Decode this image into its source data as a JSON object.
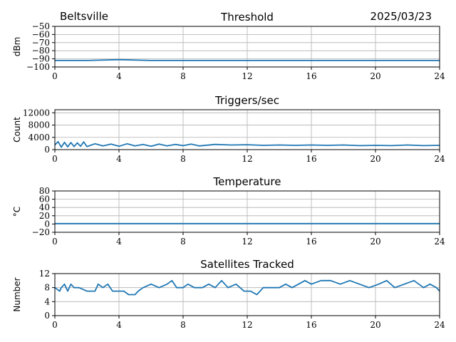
{
  "header": {
    "location": "Beltsville",
    "date": "2025/03/23"
  },
  "colors": {
    "series": "#1f77b4",
    "grid": "#b0b0b0",
    "axis": "#000000"
  },
  "chart_data": [
    {
      "type": "line",
      "title": "Threshold",
      "ylabel": "dBm",
      "xlim": [
        0,
        24
      ],
      "ylim": [
        -100,
        -50
      ],
      "xticks": [
        0,
        4,
        8,
        12,
        16,
        20,
        24
      ],
      "yticks": [
        -100,
        -90,
        -80,
        -70,
        -60,
        -50
      ],
      "grid": true,
      "series": [
        {
          "x": [
            0,
            2,
            4,
            6,
            8,
            10,
            12,
            14,
            16,
            18,
            20,
            22,
            24
          ],
          "values": [
            -92,
            -92,
            -91,
            -92,
            -92,
            -92,
            -92,
            -92,
            -92,
            -92,
            -92,
            -92,
            -92
          ]
        }
      ]
    },
    {
      "type": "line",
      "title": "Triggers/sec",
      "ylabel": "Count",
      "xlim": [
        0,
        24
      ],
      "ylim": [
        0,
        13000
      ],
      "xticks": [
        0,
        4,
        8,
        12,
        16,
        20,
        24
      ],
      "yticks": [
        0,
        4000,
        8000,
        12000
      ],
      "grid": true,
      "series": [
        {
          "x": [
            0,
            0.2,
            0.4,
            0.6,
            0.8,
            1.0,
            1.2,
            1.4,
            1.6,
            1.8,
            2.0,
            2.5,
            3.0,
            3.5,
            4.0,
            4.5,
            5.0,
            5.5,
            6.0,
            6.5,
            7.0,
            7.5,
            8.0,
            8.5,
            9.0,
            10.0,
            11.0,
            12.0,
            13.0,
            14.0,
            15.0,
            16.0,
            17.0,
            18.0,
            19.0,
            20.0,
            21.0,
            22.0,
            23.0,
            24.0
          ],
          "values": [
            1500,
            2600,
            800,
            2400,
            900,
            2300,
            1000,
            2200,
            1100,
            2500,
            1000,
            1900,
            1200,
            1800,
            1100,
            1900,
            1200,
            1700,
            1100,
            1800,
            1200,
            1700,
            1300,
            1800,
            1200,
            1700,
            1500,
            1600,
            1400,
            1500,
            1400,
            1500,
            1400,
            1500,
            1300,
            1400,
            1300,
            1500,
            1300,
            1400
          ]
        }
      ]
    },
    {
      "type": "line",
      "title": "Temperature",
      "ylabel": "°C",
      "xlim": [
        0,
        24
      ],
      "ylim": [
        -20,
        80
      ],
      "xticks": [
        0,
        4,
        8,
        12,
        16,
        20,
        24
      ],
      "yticks": [
        -20,
        0,
        20,
        40,
        60,
        80
      ],
      "grid": true,
      "series": [
        {
          "x": [
            0,
            4,
            8,
            12,
            16,
            20,
            24
          ],
          "values": [
            1,
            1,
            1,
            1,
            1,
            1,
            1
          ]
        }
      ]
    },
    {
      "type": "line",
      "title": "Satellites Tracked",
      "ylabel": "Number",
      "xlim": [
        0,
        24
      ],
      "ylim": [
        0,
        12
      ],
      "xticks": [
        0,
        4,
        8,
        12,
        16,
        20,
        24
      ],
      "yticks": [
        0,
        4,
        8,
        12
      ],
      "grid": true,
      "series": [
        {
          "x": [
            0,
            0.3,
            0.4,
            0.6,
            0.8,
            1.0,
            1.2,
            1.5,
            2.0,
            2.5,
            2.7,
            3.0,
            3.3,
            3.6,
            4.0,
            4.3,
            4.6,
            5.0,
            5.2,
            5.5,
            6.0,
            6.5,
            7.0,
            7.3,
            7.6,
            8.0,
            8.3,
            8.7,
            9.2,
            9.6,
            10.0,
            10.4,
            10.8,
            11.3,
            11.8,
            12.2,
            12.6,
            13.0,
            13.5,
            14.0,
            14.4,
            14.8,
            15.2,
            15.6,
            16.0,
            16.6,
            17.2,
            17.8,
            18.4,
            19.0,
            19.6,
            20.2,
            20.7,
            21.2,
            21.8,
            22.4,
            23.0,
            23.4,
            23.8,
            24.0
          ],
          "values": [
            8,
            7,
            8,
            9,
            7,
            9,
            8,
            8,
            7,
            7,
            9,
            8,
            9,
            7,
            7,
            7,
            6,
            6,
            7,
            8,
            9,
            8,
            9,
            10,
            8,
            8,
            9,
            8,
            8,
            9,
            8,
            10,
            8,
            9,
            7,
            7,
            6,
            8,
            8,
            8,
            9,
            8,
            9,
            10,
            9,
            10,
            10,
            9,
            10,
            9,
            8,
            9,
            10,
            8,
            9,
            10,
            8,
            9,
            8,
            7
          ]
        }
      ]
    }
  ]
}
